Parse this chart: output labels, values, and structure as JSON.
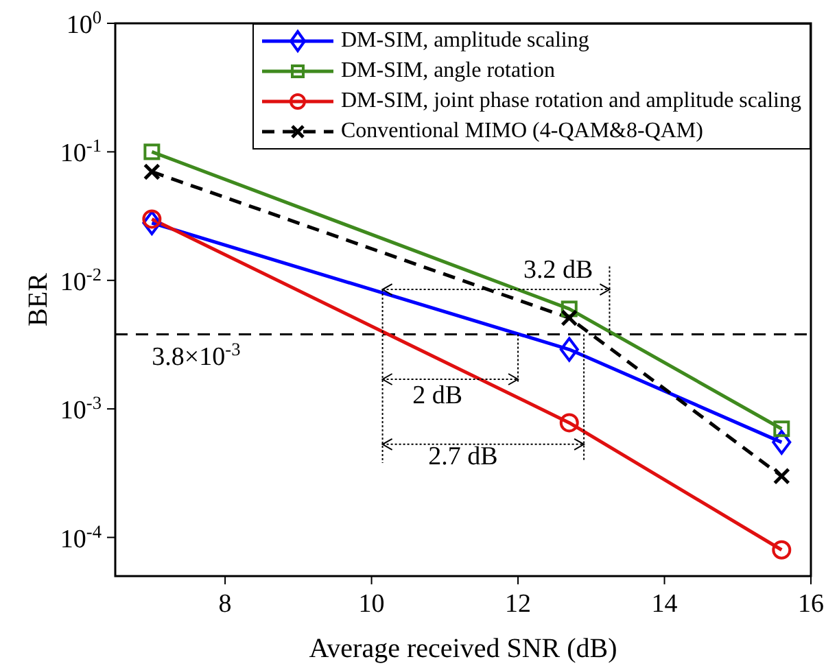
{
  "chart_data": {
    "type": "line",
    "xlabel": "Average received SNR (dB)",
    "ylabel": "BER",
    "log": "y",
    "grid": false,
    "legend": "top right",
    "x": [
      7.0,
      12.7,
      15.6
    ],
    "xlim": [
      6.5,
      16
    ],
    "xticks": [
      8,
      10,
      12,
      14,
      16
    ],
    "ylim": [
      5e-05,
      1
    ],
    "yticks": [
      {
        "value": 1,
        "label": "10$^{0}$"
      },
      {
        "value": 0.1,
        "label": "10$^{-1}$"
      },
      {
        "value": 0.01,
        "label": "10$^{-2}$"
      },
      {
        "value": 0.001,
        "label": "10$^{-3}$"
      },
      {
        "value": 0.0001,
        "label": "10$^{-4}$"
      }
    ],
    "series": [
      {
        "name": "DM-SIM, amplitude scaling",
        "color": "#0000ff",
        "marker": "diamond",
        "line_style": "solid",
        "values": [
          0.028,
          0.0029,
          0.00055
        ]
      },
      {
        "name": "DM-SIM, angle rotation",
        "color": "#3f8a1e",
        "marker": "square",
        "line_style": "solid",
        "values": [
          0.1,
          0.006,
          0.0007
        ]
      },
      {
        "name": "DM-SIM, joint phase rotation and amplitude scaling",
        "color": "#e01010",
        "marker": "circle",
        "line_style": "solid",
        "values": [
          0.03,
          0.00078,
          8e-05
        ]
      },
      {
        "name": "Conventional MIMO (4-QAM&8-QAM)",
        "color": "#000000",
        "marker": "cross",
        "line_style": "dashed",
        "values": [
          0.07,
          0.0051,
          0.0003
        ]
      }
    ],
    "ref_lines": [
      {
        "axis": "y",
        "value": 0.0038,
        "label": "3.8×10$^{-3}$",
        "color": "#000000",
        "line_style": "dashed"
      }
    ],
    "annotations": [
      {
        "text": "3.2 dB",
        "x": 13.25,
        "y": 0.0038
      },
      {
        "text": "2 dB",
        "x": 12.0,
        "y": 0.0038
      },
      "2.7 dB"
    ]
  }
}
